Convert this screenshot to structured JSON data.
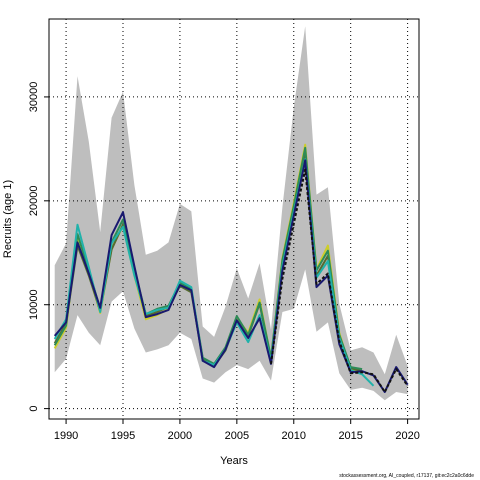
{
  "chart_data": {
    "type": "line",
    "xlabel": "Years",
    "ylabel": "Recruits (age 1)",
    "footer": "stockassessment.org, AI_coupled, r17137, git:ec2c2a0c6dde",
    "xlim": [
      1988.5,
      2021
    ],
    "ylim": [
      -1000,
      37500
    ],
    "xticks": [
      1990,
      1995,
      2000,
      2005,
      2010,
      2015,
      2020
    ],
    "yticks": [
      0,
      10000,
      20000,
      30000
    ],
    "grid": true,
    "band": {
      "color": "#bebebe",
      "x": [
        1989,
        1990,
        1991,
        1992,
        1993,
        1994,
        1995,
        1996,
        1997,
        1998,
        1999,
        2000,
        2001,
        2002,
        2003,
        2004,
        2005,
        2006,
        2007,
        2008,
        2009,
        2010,
        2011,
        2012,
        2013,
        2014,
        2015,
        2016,
        2017,
        2018,
        2019,
        2020
      ],
      "lower": [
        3500,
        4800,
        9000,
        7300,
        6100,
        10300,
        11300,
        7700,
        5400,
        5700,
        6100,
        7300,
        6700,
        2900,
        2500,
        3500,
        4200,
        3800,
        4600,
        2700,
        9300,
        9600,
        13400,
        7400,
        8300,
        3400,
        1800,
        2000,
        1700,
        800,
        1600,
        1400
      ],
      "upper": [
        13800,
        15900,
        32000,
        25700,
        17000,
        28000,
        30500,
        21500,
        14800,
        15200,
        16000,
        19700,
        19000,
        7900,
        6900,
        9800,
        13500,
        10600,
        14000,
        7600,
        19400,
        29000,
        36800,
        20600,
        21300,
        10100,
        5600,
        5900,
        5400,
        3300,
        7100,
        4100
      ]
    },
    "series": [
      {
        "color": "#cdcd2a",
        "x": [
          1989,
          1990,
          1991,
          1992,
          1993,
          1994,
          1995,
          1996,
          1997,
          1998,
          1999,
          2000,
          2001,
          2002,
          2003,
          2004,
          2005,
          2006,
          2007,
          2008,
          2009,
          2010,
          2011,
          2012,
          2013,
          2014,
          2015,
          2016
        ],
        "values": [
          5800,
          7800,
          16500,
          13000,
          9200,
          15400,
          17600,
          12800,
          8600,
          9000,
          9600,
          11900,
          11400,
          4700,
          4200,
          5800,
          8700,
          7300,
          10500,
          4800,
          14500,
          19800,
          25400,
          13400,
          15700,
          7300,
          3700,
          3500
        ]
      },
      {
        "color": "#556b2f",
        "x": [
          1989,
          1990,
          1991,
          1992,
          1993,
          1994,
          1995,
          1996,
          1997,
          1998,
          1999,
          2000,
          2001,
          2002,
          2003,
          2004,
          2005,
          2006,
          2007,
          2008,
          2009,
          2010,
          2011,
          2012,
          2013,
          2014,
          2015,
          2016
        ],
        "values": [
          6300,
          8200,
          15700,
          12800,
          9400,
          15300,
          17700,
          13100,
          8900,
          9300,
          9800,
          11800,
          11200,
          4800,
          4100,
          5600,
          8500,
          7000,
          10100,
          4700,
          14000,
          19100,
          24700,
          12800,
          14700,
          6900,
          3900,
          3600
        ]
      },
      {
        "color": "#2e8b57",
        "x": [
          1989,
          1990,
          1991,
          1992,
          1993,
          1994,
          1995,
          1996,
          1997,
          1998,
          1999,
          2000,
          2001,
          2002,
          2003,
          2004,
          2005,
          2006,
          2007,
          2008,
          2009,
          2010,
          2011,
          2012,
          2013,
          2014,
          2015,
          2016
        ],
        "values": [
          6100,
          8000,
          16800,
          13300,
          9600,
          16000,
          18200,
          13400,
          9100,
          9600,
          9900,
          12100,
          11500,
          4900,
          4300,
          5900,
          8900,
          7100,
          10200,
          4900,
          14300,
          19500,
          25100,
          13300,
          15200,
          7100,
          4000,
          3800
        ]
      },
      {
        "color": "#20b2aa",
        "x": [
          1989,
          1990,
          1991,
          1992,
          1993,
          1994,
          1995,
          1996,
          1997,
          1998,
          1999,
          2000,
          2001,
          2002,
          2003,
          2004,
          2005,
          2006,
          2007,
          2008,
          2009,
          2010,
          2011,
          2012,
          2013,
          2014,
          2015,
          2016,
          2017
        ],
        "values": [
          6700,
          8600,
          17700,
          13600,
          9300,
          15900,
          17500,
          12800,
          9100,
          9500,
          9700,
          12300,
          11700,
          4600,
          4200,
          5700,
          8300,
          6400,
          9000,
          4500,
          13700,
          18900,
          24000,
          12600,
          14200,
          6800,
          3700,
          3300,
          2200
        ]
      },
      {
        "color": "#191970",
        "x": [
          1989,
          1990,
          1991,
          1992,
          1993,
          1994,
          1995,
          1996,
          1997,
          1998,
          1999,
          2000,
          2001,
          2002,
          2003,
          2004,
          2005,
          2006,
          2007,
          2008,
          2009,
          2010,
          2011,
          2012,
          2013,
          2014,
          2015,
          2016,
          2017,
          2018,
          2019,
          2020
        ],
        "values": [
          7000,
          8300,
          16000,
          13000,
          9700,
          16700,
          18900,
          13700,
          8800,
          9100,
          9500,
          11900,
          11400,
          4600,
          4000,
          5700,
          8500,
          6800,
          8700,
          4300,
          13300,
          18600,
          23900,
          11700,
          12800,
          6200,
          3500,
          3600,
          3200,
          1600,
          4000,
          2300
        ]
      },
      {
        "color": "#111111",
        "dash": true,
        "x": [
          2008,
          2009,
          2010,
          2011,
          2012,
          2013,
          2014,
          2015,
          2016,
          2017,
          2018,
          2019,
          2020
        ],
        "values": [
          4300,
          12500,
          17800,
          23000,
          12000,
          13000,
          6500,
          3400,
          3500,
          3300,
          1600,
          3800,
          2200
        ]
      }
    ]
  }
}
